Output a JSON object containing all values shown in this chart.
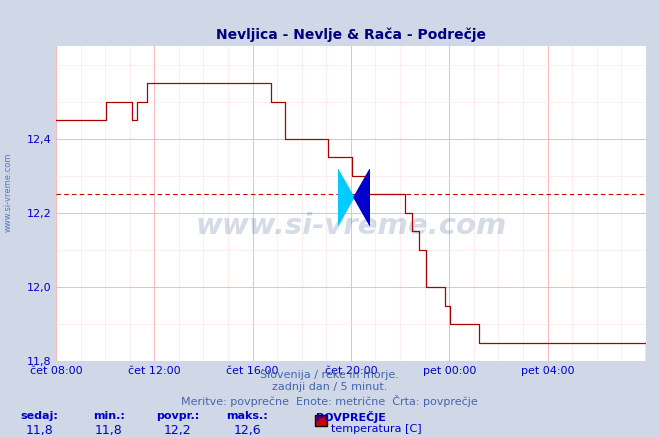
{
  "title": "Nevljica - Nevlje & Rača - Podrečje",
  "title_color": "#000080",
  "background_color": "#d0d8e8",
  "plot_bg_color": "#ffffff",
  "grid_color_major": "#ffaaaa",
  "grid_color_minor": "#ffe0e0",
  "line_color": "#aa0000",
  "avg_value": 12.25,
  "avg_line_color": "#cc0000",
  "tick_color": "#0000cc",
  "xlim_start": 0,
  "xlim_end": 288,
  "ylim_min": 11.8,
  "ylim_max": 12.65,
  "yticks": [
    11.8,
    12.0,
    12.2,
    12.4
  ],
  "ytick_labels": [
    "11,8",
    "12,0",
    "12,2",
    "12,4"
  ],
  "xtick_positions": [
    0,
    48,
    96,
    144,
    192,
    240
  ],
  "xtick_labels": [
    "čet 08:00",
    "čet 12:00",
    "čet 16:00",
    "čet 20:00",
    "pet 00:00",
    "pet 04:00"
  ],
  "footer_color": "#4466aa",
  "stats_label_color": "#0000cc",
  "stats_value_color": "#0000cc",
  "watermark_text": "www.si-vreme.com",
  "watermark_color": "#1a3a7a",
  "side_text": "www.si-vreme.com",
  "side_text_color": "#4466aa",
  "legend_label": "temperatura [C]",
  "legend_color": "#cc0000",
  "sedaj": "11,8",
  "min_val": "11,8",
  "povpr": "12,2",
  "maks": "12,6",
  "temperature_data": [
    12.45,
    12.45,
    12.45,
    12.45,
    12.45,
    12.45,
    12.45,
    12.45,
    12.45,
    12.45,
    12.45,
    12.45,
    12.45,
    12.45,
    12.45,
    12.45,
    12.45,
    12.45,
    12.45,
    12.45,
    12.45,
    12.5,
    12.5,
    12.5,
    12.5,
    12.5,
    12.5,
    12.5,
    12.5,
    12.5,
    12.5,
    12.5,
    12.45,
    12.45,
    12.5,
    12.5,
    12.5,
    12.5,
    12.55,
    12.55,
    12.55,
    12.55,
    12.55,
    12.55,
    12.55,
    12.55,
    12.55,
    12.55,
    12.55,
    12.55,
    12.55,
    12.55,
    12.55,
    12.55,
    12.55,
    12.55,
    12.55,
    12.55,
    12.55,
    12.55,
    12.55,
    12.55,
    12.55,
    12.55,
    12.55,
    12.55,
    12.55,
    12.55,
    12.55,
    12.55,
    12.55,
    12.55,
    12.55,
    12.55,
    12.55,
    12.55,
    12.55,
    12.55,
    12.55,
    12.55,
    12.55,
    12.55,
    12.55,
    12.55,
    12.55,
    12.55,
    12.55,
    12.55,
    12.55,
    12.55,
    12.5,
    12.5,
    12.5,
    12.5,
    12.5,
    12.5,
    12.4,
    12.4,
    12.4,
    12.4,
    12.4,
    12.4,
    12.4,
    12.4,
    12.4,
    12.4,
    12.4,
    12.4,
    12.4,
    12.4,
    12.4,
    12.4,
    12.4,
    12.4,
    12.35,
    12.35,
    12.35,
    12.35,
    12.35,
    12.35,
    12.35,
    12.35,
    12.35,
    12.35,
    12.3,
    12.3,
    12.3,
    12.3,
    12.3,
    12.3,
    12.25,
    12.25,
    12.25,
    12.25,
    12.25,
    12.25,
    12.25,
    12.25,
    12.25,
    12.25,
    12.25,
    12.25,
    12.25,
    12.25,
    12.25,
    12.25,
    12.2,
    12.2,
    12.2,
    12.15,
    12.15,
    12.15,
    12.1,
    12.1,
    12.1,
    12.0,
    12.0,
    12.0,
    12.0,
    12.0,
    12.0,
    12.0,
    12.0,
    11.95,
    11.95,
    11.9,
    11.9,
    11.9,
    11.9,
    11.9,
    11.9,
    11.9,
    11.9,
    11.9,
    11.9,
    11.9,
    11.9,
    11.85,
    11.85,
    11.85,
    11.85,
    11.85,
    11.85,
    11.85,
    11.85,
    11.85,
    11.85,
    11.85,
    11.85,
    11.85,
    11.85,
    11.85,
    11.85,
    11.85,
    11.85,
    11.85,
    11.85,
    11.85,
    11.85,
    11.85,
    11.85,
    11.85,
    11.85,
    11.85,
    11.85,
    11.85,
    11.85,
    11.85,
    11.85,
    11.85,
    11.85,
    11.85,
    11.85,
    11.85,
    11.85,
    11.85,
    11.85,
    11.85,
    11.85,
    11.85,
    11.85,
    11.85,
    11.85,
    11.85,
    11.85,
    11.85,
    11.85,
    11.85,
    11.85,
    11.85,
    11.85,
    11.85,
    11.85,
    11.85,
    11.85,
    11.85,
    11.85,
    11.85,
    11.85,
    11.85,
    11.85,
    11.85,
    11.85,
    11.85,
    11.85,
    11.85,
    11.85,
    11.8
  ]
}
